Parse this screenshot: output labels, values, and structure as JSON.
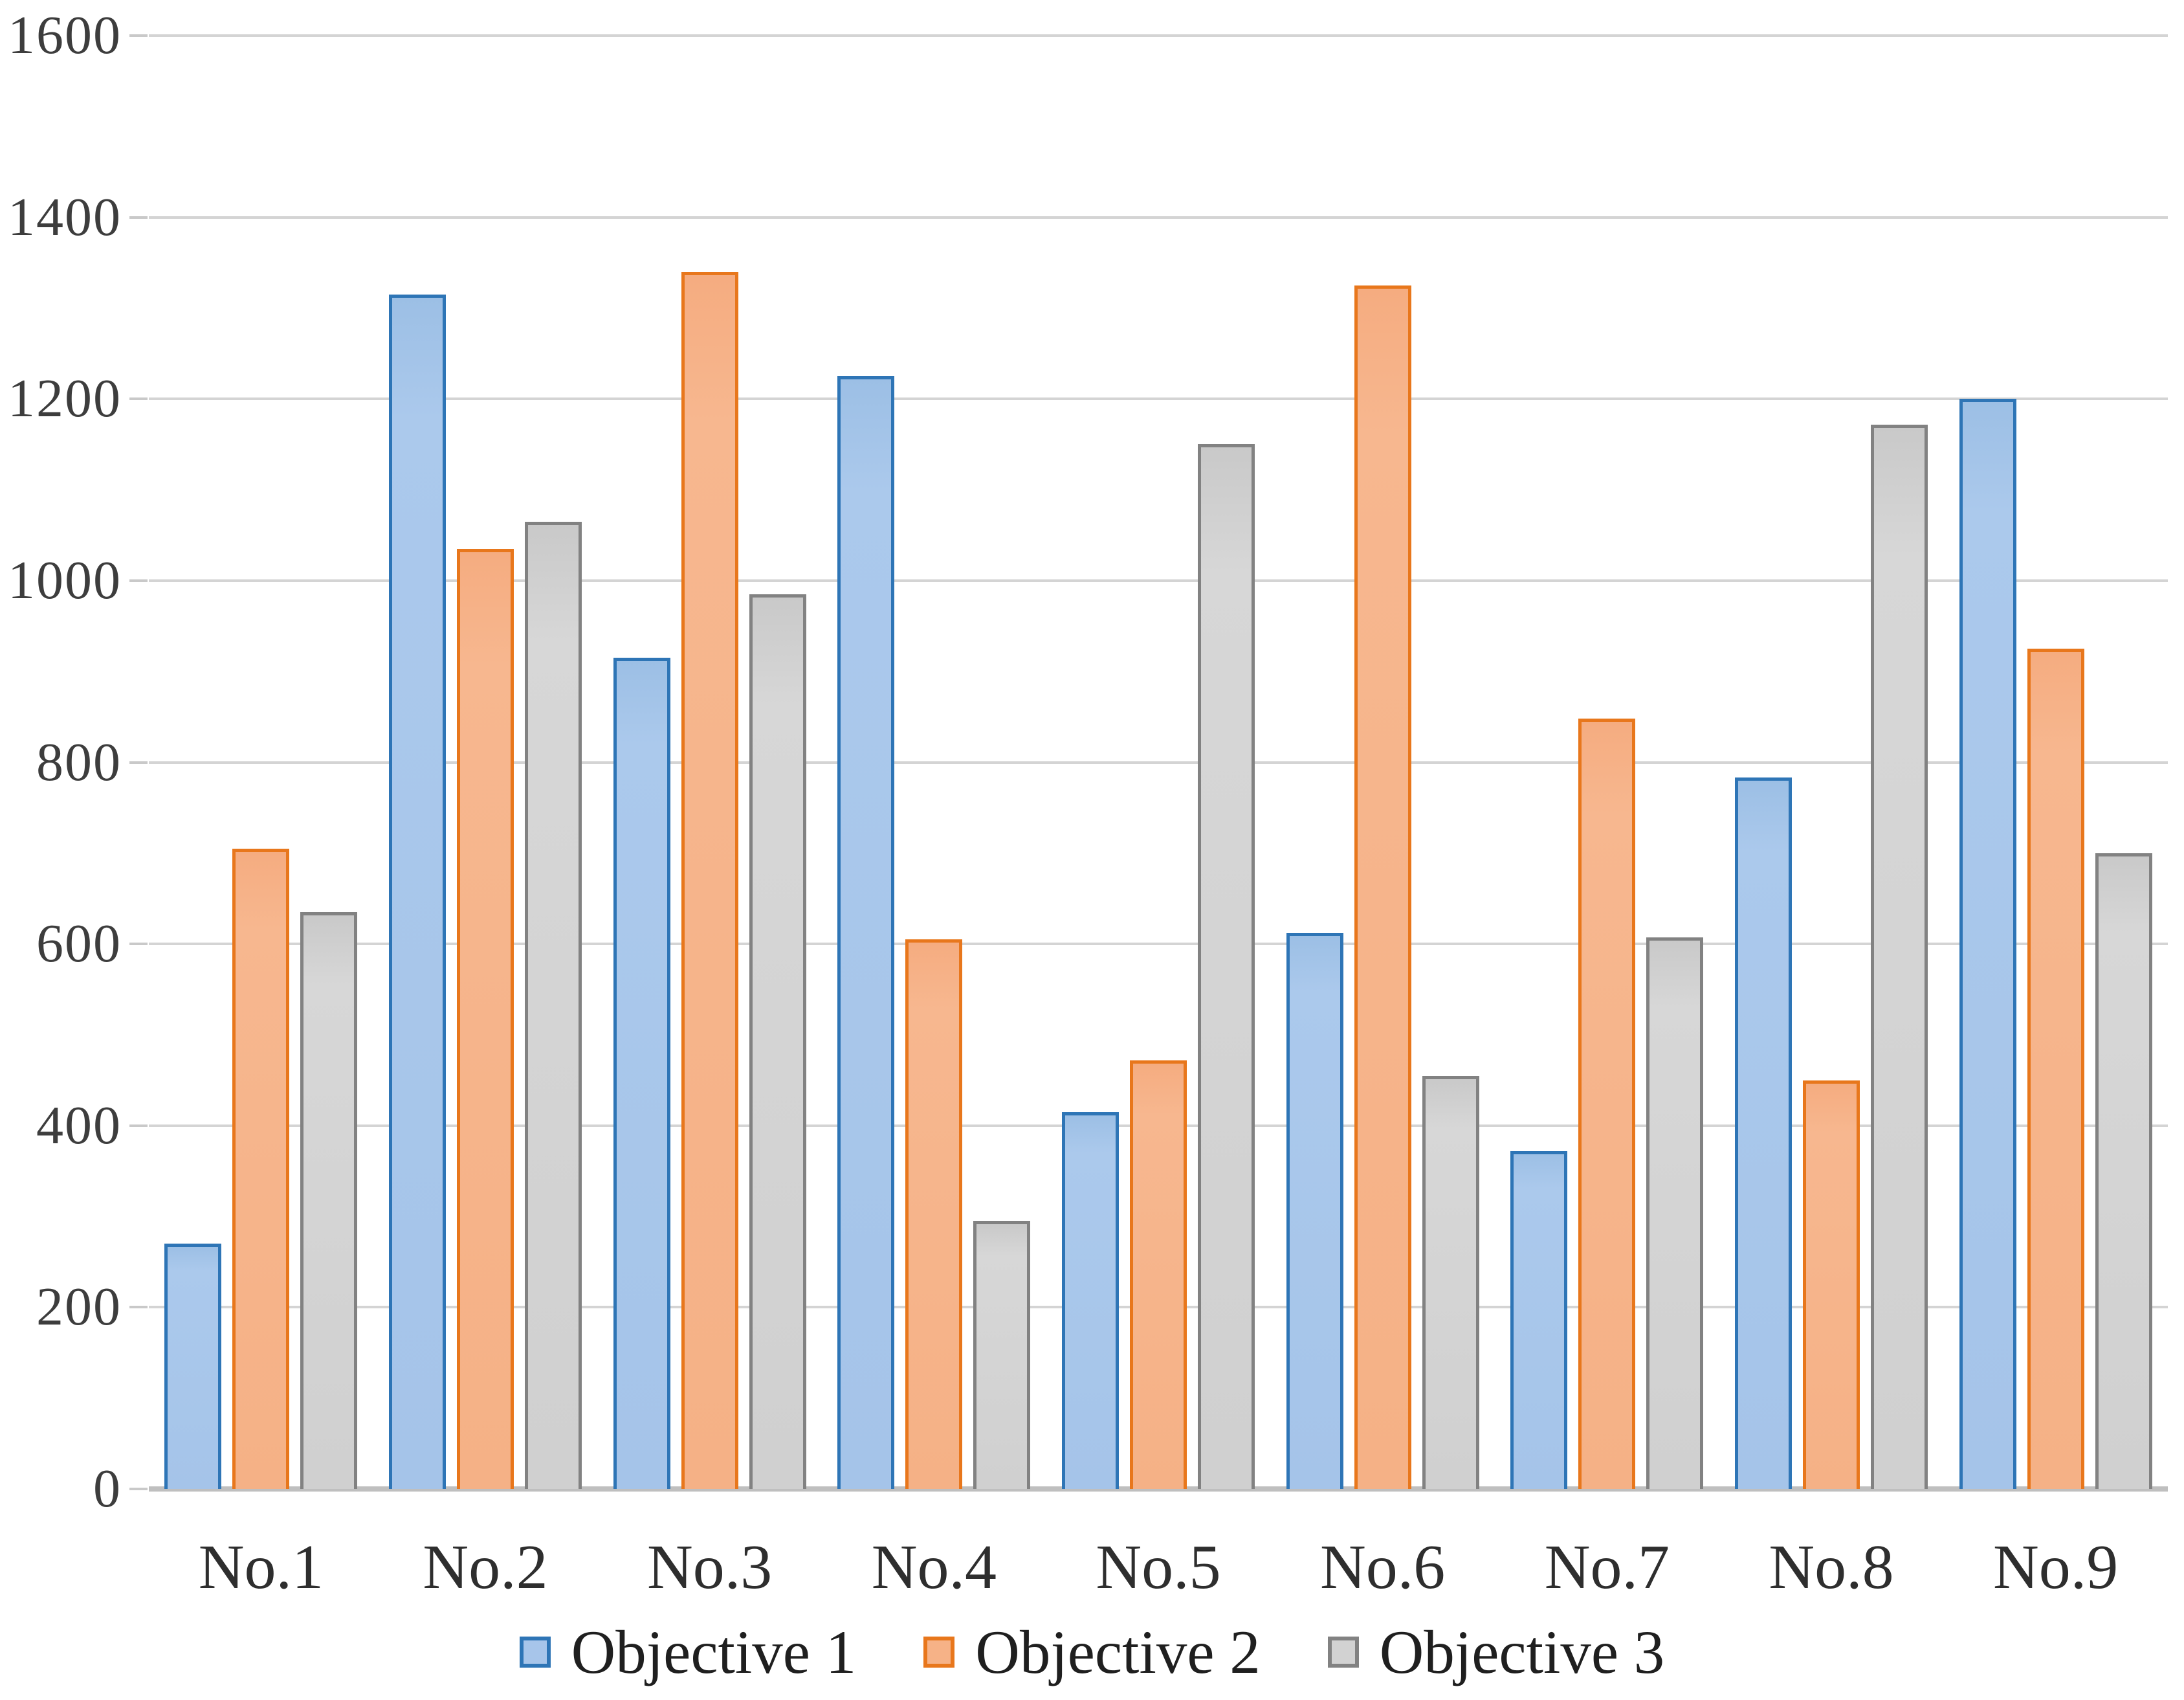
{
  "chart_data": {
    "type": "bar",
    "title": "",
    "xlabel": "",
    "ylabel": "",
    "categories": [
      "No.1",
      "No.2",
      "No.3",
      "No.4",
      "No.5",
      "No.6",
      "No.7",
      "No.8",
      "No.9"
    ],
    "series": [
      {
        "name": "Objective 1",
        "fill": "#a5c4e9",
        "border": "#2e75b6",
        "values": [
          270,
          1315,
          915,
          1225,
          415,
          612,
          372,
          783,
          1200
        ]
      },
      {
        "name": "Objective 2",
        "fill": "#f5b186",
        "border": "#e8771c",
        "values": [
          705,
          1035,
          1340,
          605,
          472,
          1325,
          848,
          450,
          925
        ]
      },
      {
        "name": "Objective 3",
        "fill": "#d0d0d0",
        "border": "#828282",
        "values": [
          635,
          1065,
          985,
          295,
          1150,
          455,
          607,
          1172,
          700
        ]
      }
    ],
    "ylim": [
      0,
      1600
    ],
    "yticks": [
      1600,
      1400,
      1200,
      1000,
      800,
      600,
      400,
      200,
      0
    ],
    "grid": true,
    "gridline_color": "#d4d4d4",
    "axis_line_color": "#bfbfbf",
    "legend_position": "bottom"
  }
}
